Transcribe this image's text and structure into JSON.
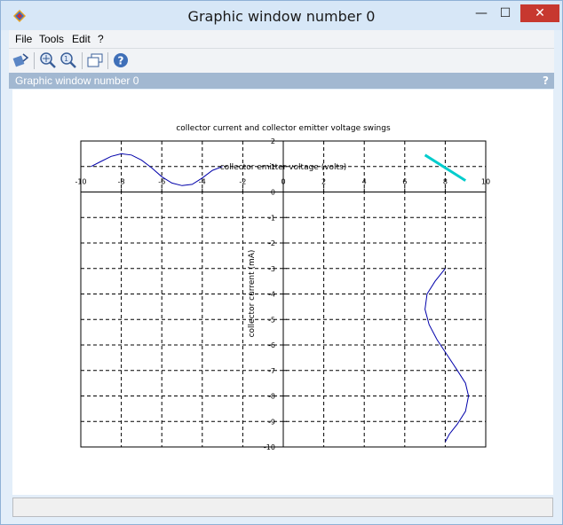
{
  "window": {
    "title": "Graphic window number 0",
    "panel_title": "Graphic window number 0",
    "panel_help": "?",
    "minimize": "—",
    "maximize": "☐",
    "close": "✕"
  },
  "menu": [
    "File",
    "Tools",
    "Edit",
    "?"
  ],
  "toolbar": {
    "icons": [
      "rotate-icon",
      "zoom-in-icon",
      "zoom-reset-icon",
      "windows-icon",
      "help-icon"
    ]
  },
  "chart_data": {
    "type": "line",
    "title": "collector current and collector emitter voltage swings",
    "xlabel": "collector emitter voltage (volts)",
    "ylabel": "collector current (mA)",
    "xlim": [
      -10,
      10
    ],
    "ylim": [
      -10,
      2
    ],
    "grid": true,
    "xticks": [
      "-10",
      "-8",
      "-6",
      "-4",
      "-2",
      "0",
      "2",
      "4",
      "6",
      "8",
      "10"
    ],
    "yticks": [
      "2",
      "1",
      "0",
      "-1",
      "-2",
      "-3",
      "-4",
      "-5",
      "-6",
      "-7",
      "-8",
      "-9",
      "-10"
    ],
    "series": [
      {
        "color": "#0000aa",
        "x": [
          -9.5,
          -9,
          -8.5,
          -8,
          -7.5,
          -7,
          -6.5,
          -6,
          -5.5,
          -5,
          -4.5,
          -4,
          -3.5,
          -3
        ],
        "y": [
          1.0,
          1.2,
          1.4,
          1.5,
          1.45,
          1.25,
          0.95,
          0.6,
          0.35,
          0.25,
          0.3,
          0.55,
          0.85,
          1.0
        ]
      },
      {
        "color": "#00cccc",
        "x": [
          7,
          9
        ],
        "y": [
          1.45,
          0.45
        ]
      },
      {
        "color": "#0000aa",
        "x": [
          8.0,
          7.5,
          7.1,
          7.0,
          7.2,
          7.6,
          8.1,
          8.6,
          9.0,
          9.15,
          9.0,
          8.6,
          8.2,
          8.0
        ],
        "y": [
          -3.0,
          -3.5,
          -4.0,
          -4.6,
          -5.2,
          -5.8,
          -6.4,
          -7.0,
          -7.5,
          -8.0,
          -8.6,
          -9.1,
          -9.5,
          -9.8
        ]
      }
    ]
  }
}
